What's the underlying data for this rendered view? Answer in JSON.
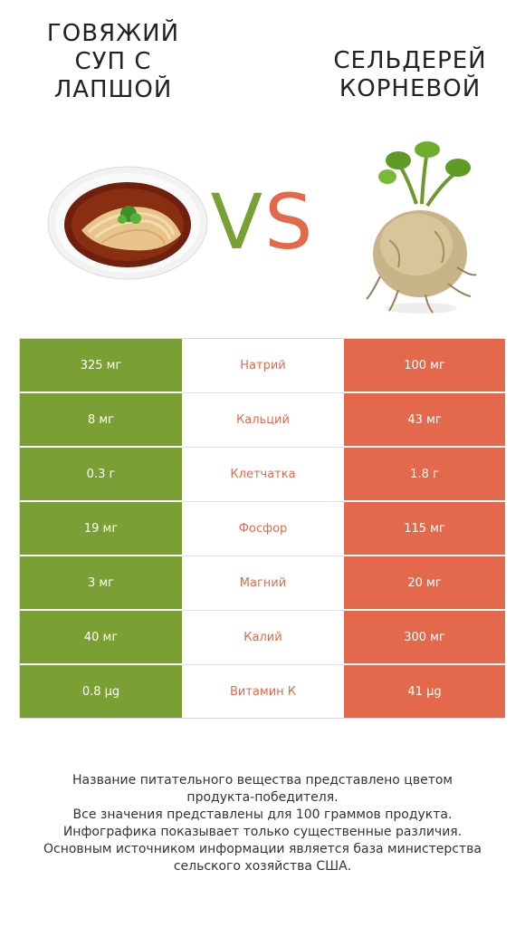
{
  "left_food": {
    "title": "ГОВЯЖИЙ\nСУП С\nЛАПШОЙ"
  },
  "right_food": {
    "title": "СЕЛЬДЕРЕЙ\nКОРНЕВОЙ"
  },
  "vs": {
    "v": "V",
    "s": "S"
  },
  "colors": {
    "left_accent": "#7a9f35",
    "right_accent": "#e4694c"
  },
  "comparison": [
    {
      "nutrient": "Натрий",
      "left": "325 мг",
      "right": "100 мг",
      "winner": "right"
    },
    {
      "nutrient": "Кальций",
      "left": "8 мг",
      "right": "43 мг",
      "winner": "right"
    },
    {
      "nutrient": "Клетчатка",
      "left": "0.3 г",
      "right": "1.8 г",
      "winner": "right"
    },
    {
      "nutrient": "Фосфор",
      "left": "19 мг",
      "right": "115 мг",
      "winner": "right"
    },
    {
      "nutrient": "Магний",
      "left": "3 мг",
      "right": "20 мг",
      "winner": "right"
    },
    {
      "nutrient": "Калий",
      "left": "40 мг",
      "right": "300 мг",
      "winner": "right"
    },
    {
      "nutrient": "Витамин К",
      "left": "0.8 µg",
      "right": "41 µg",
      "winner": "right"
    }
  ],
  "footnote": [
    "Название питательного вещества представлено цветом",
    "продукта-победителя.",
    "Все значения представлены для 100 граммов продукта.",
    "Инфографика показывает только существенные различия.",
    "Основным источником информации является база министерства",
    "сельского хозяйства США."
  ]
}
